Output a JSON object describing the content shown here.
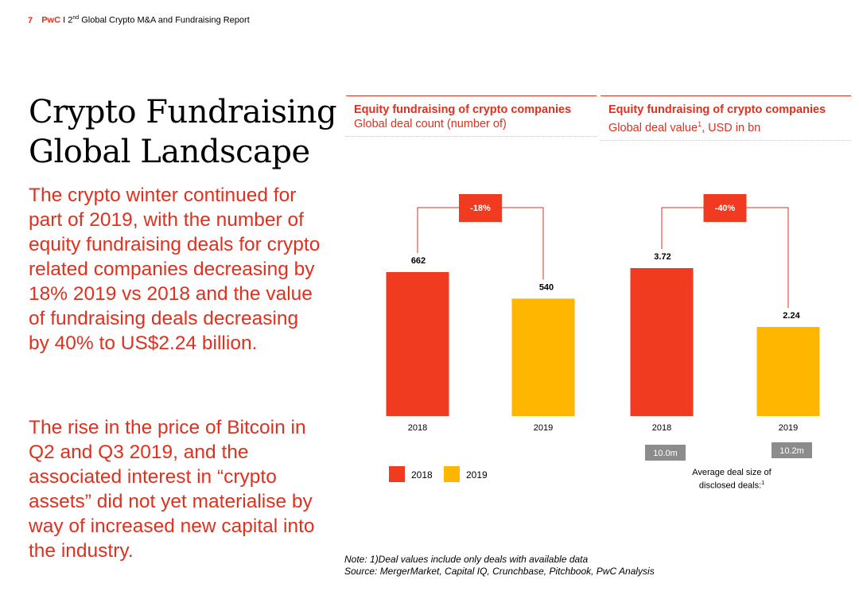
{
  "header": {
    "page_number": "7",
    "brand": "PwC",
    "separator": "I",
    "ordinal_num": "2",
    "ordinal_suffix": "nd",
    "report_title": "Global Crypto M&A and Fundraising Report"
  },
  "title": {
    "line1": "Crypto Fundraising",
    "line2": "Global Landscape"
  },
  "body": {
    "paragraph1": "The crypto winter continued for part of 2019, with the number of equity fundraising deals for crypto related companies decreasing by 18% 2019 vs 2018 and the value of fundraising deals decreasing by 40% to US$2.24 billion.",
    "paragraph2": "The rise in the price of Bitcoin in Q2 and Q3 2019, and the associated interest in “crypto assets” did not yet materialise by way of increased new capital into the industry."
  },
  "panels": [
    {
      "heading": "Equity fundraising of crypto companies",
      "subheading": "Global deal count (number of)",
      "sup": ""
    },
    {
      "heading": "Equity fundraising of crypto companies",
      "subheading_pre": "Global deal value",
      "sup": "1",
      "subheading_post": ", USD in bn"
    }
  ],
  "colors": {
    "accent": "#e0301e",
    "bar_2018": "#f03b20",
    "bar_2019": "#ffb600",
    "avg_box": "#8c8c8c"
  },
  "chart_data": [
    {
      "type": "bar",
      "title": "Equity fundraising of crypto companies",
      "subtitle": "Global deal count (number of)",
      "categories": [
        "2018",
        "2019"
      ],
      "values": [
        662,
        540
      ],
      "value_labels": [
        "662",
        "540"
      ],
      "change_label": "-18%"
    },
    {
      "type": "bar",
      "title": "Equity fundraising of crypto companies",
      "subtitle": "Global deal value1, USD in bn",
      "categories": [
        "2018",
        "2019"
      ],
      "values": [
        3.72,
        2.24
      ],
      "value_labels": [
        "3.72",
        "2.24"
      ],
      "change_label": "-40%",
      "average_deal_size": [
        "10.0m",
        "10.2m"
      ]
    }
  ],
  "legend": {
    "items": [
      "2018",
      "2019"
    ]
  },
  "avg_label": {
    "text": "Average deal size of disclosed deals:",
    "sup": "1"
  },
  "note": {
    "line1": "Note: 1)Deal values include only deals with available data",
    "line2": "Source: MergerMarket, Capital IQ, Crunchbase, Pitchbook, PwC Analysis"
  }
}
